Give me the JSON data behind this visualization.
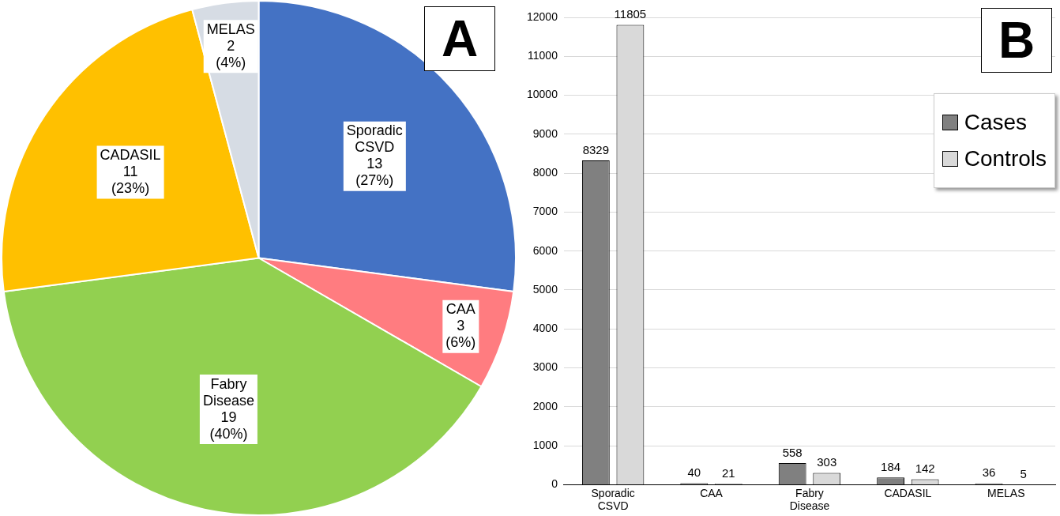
{
  "chart_data": [
    {
      "type": "pie",
      "title": "A",
      "categories": [
        "Sporadic CSVD",
        "CAA",
        "Fabry Disease",
        "CADASIL",
        "MELAS"
      ],
      "values": [
        13,
        3,
        19,
        11,
        2
      ],
      "value_labels": [
        "13 (27%)",
        "3 (6%)",
        "19 (40%)",
        "11 (23%)",
        "2 (4%)"
      ],
      "colors": [
        "#4472c4",
        "#ff7c80",
        "#92d050",
        "#ffc000",
        "#d6dce4"
      ]
    },
    {
      "type": "bar",
      "title": "B",
      "categories": [
        "Sporadic CSVD",
        "CAA",
        "Fabry Disease",
        "CADASIL",
        "MELAS"
      ],
      "series": [
        {
          "name": "Cases",
          "color": "#808080",
          "values": [
            8329,
            40,
            558,
            184,
            36
          ]
        },
        {
          "name": "Controls",
          "color": "#d9d9d9",
          "values": [
            11805,
            21,
            303,
            142,
            5
          ]
        }
      ],
      "ylim": [
        0,
        12000
      ],
      "yticks": [
        0,
        1000,
        2000,
        3000,
        4000,
        5000,
        6000,
        7000,
        8000,
        9000,
        10000,
        11000,
        12000
      ],
      "grid": "y",
      "legend": "top right",
      "data_labels": true
    }
  ]
}
